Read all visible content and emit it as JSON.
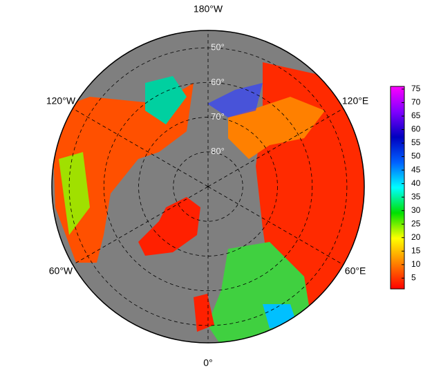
{
  "map": {
    "lat_limit": 45,
    "parallels": [
      {
        "value": 50,
        "label": "50°"
      },
      {
        "value": 60,
        "label": "60°"
      },
      {
        "value": 70,
        "label": "70°"
      },
      {
        "value": 80,
        "label": "80°"
      }
    ],
    "meridians": [
      {
        "value": -180,
        "label": "180°W"
      },
      {
        "value": -120,
        "label": "120°W"
      },
      {
        "value": -60,
        "label": "60°W"
      },
      {
        "value": 0,
        "label": "0°"
      },
      {
        "value": 60,
        "label": "60°E"
      },
      {
        "value": 120,
        "label": "120°E"
      }
    ],
    "colorbar": {
      "range": [
        1,
        76
      ],
      "ticks": [
        5,
        10,
        15,
        20,
        25,
        30,
        35,
        40,
        45,
        50,
        55,
        60,
        65,
        70,
        75
      ],
      "colormap": [
        "#ff0000",
        "#ff8000",
        "#ffff00",
        "#00e000",
        "#00ffff",
        "#0060ff",
        "#0000c0",
        "#8000ff",
        "#ff00ff"
      ]
    }
  }
}
